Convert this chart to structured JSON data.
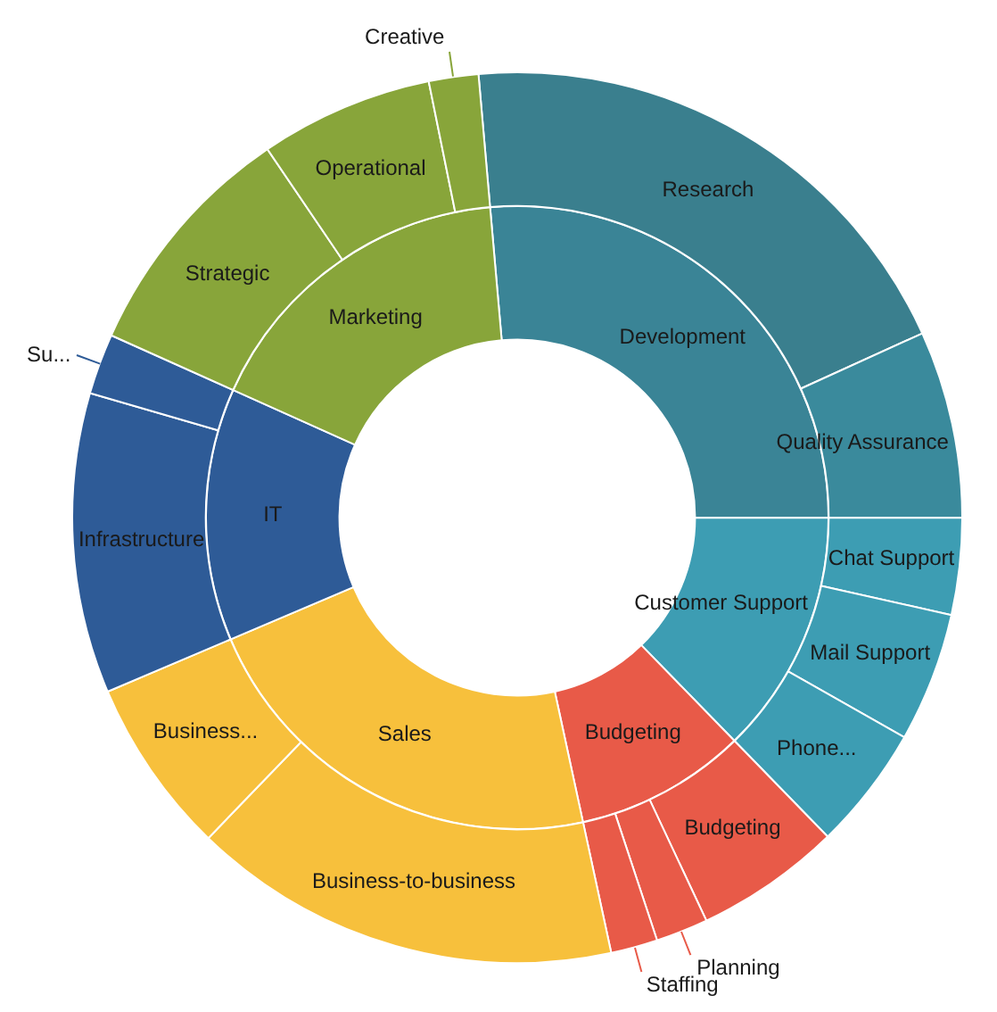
{
  "chart_data": [
    {
      "type": "donut",
      "legend": false,
      "categories": [
        "Research",
        "Quality Assurance",
        "Chat Support",
        "Mail Support",
        "Phone...",
        "Budgeting",
        "Planning",
        "Staffing",
        "Business-to-business",
        "Business...",
        "Infrastructure",
        "Su...",
        "Strategic",
        "Operational",
        "Creative"
      ],
      "values": [
        19.6,
        6.8,
        3.5,
        4.7,
        4.5,
        5.3,
        1.9,
        1.7,
        15.6,
        6.4,
        10.9,
        2.2,
        8.8,
        6.3,
        1.8
      ],
      "colors": [
        "#3a7f8e",
        "#3a8a9c",
        "#3d9db3",
        "#3d9db3",
        "#3d9db3",
        "#e85a48",
        "#e85a48",
        "#e85a48",
        "#f7c03c",
        "#f7c03c",
        "#2e5b97",
        "#2e5b97",
        "#88a53a",
        "#88a53a",
        "#88a53a"
      ]
    },
    {
      "type": "donut",
      "legend": false,
      "categories": [
        "Development",
        "Customer Support",
        "Budgeting",
        "Sales",
        "IT",
        "Marketing"
      ],
      "values": [
        26.4,
        12.7,
        8.9,
        22.0,
        13.1,
        16.9
      ],
      "colors": [
        "#3a8496",
        "#3d9db3",
        "#e85a48",
        "#f7c03c",
        "#2e5b97",
        "#88a53a"
      ]
    }
  ]
}
